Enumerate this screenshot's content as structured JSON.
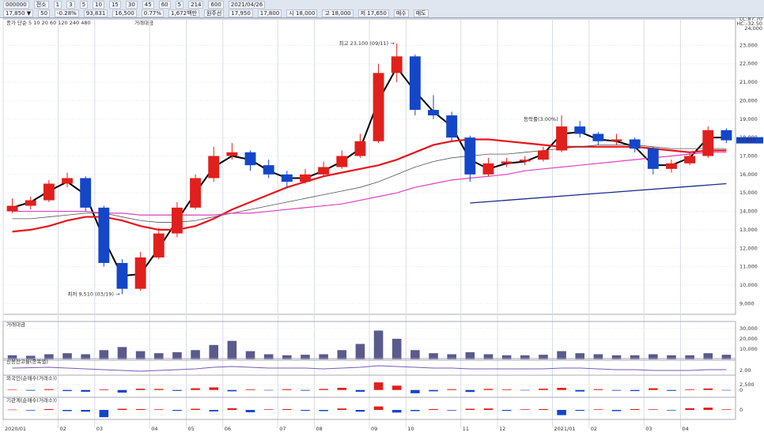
{
  "toolbar": {
    "row1": [
      "000000",
      "전소",
      "1",
      "3",
      "5",
      "10",
      "15",
      "30",
      "45",
      "60",
      "5",
      "214",
      "600",
      "2021/04/26"
    ],
    "row2": [
      "17,850 ▼",
      "50",
      "-0.28%",
      "93,831",
      "16,500",
      "0.77%",
      "1,672백만",
      "원주선",
      "17,950",
      "17,800",
      "시 18,000",
      "고 18,000",
      "저 17,650",
      "매수",
      "매도"
    ]
  },
  "chart_data": {
    "type": "candlestick",
    "legend": [
      "종가 단순 5 10 20 60 120 240 480",
      "거래대금"
    ],
    "right_header": [
      "LC:87.70",
      "HC:-32.50",
      "24,000"
    ],
    "categories": [
      "2020/01",
      null,
      null,
      "02",
      null,
      "03",
      null,
      null,
      "04",
      null,
      "05",
      null,
      "06",
      null,
      null,
      "07",
      null,
      "08",
      null,
      null,
      "09",
      null,
      "10",
      null,
      null,
      "11",
      null,
      "12",
      null,
      null,
      "2021/01",
      null,
      "02",
      null,
      null,
      "03",
      null,
      "04",
      null,
      null
    ],
    "candles": [
      [
        14000,
        14700,
        13900,
        14300
      ],
      [
        14300,
        14800,
        14100,
        14600
      ],
      [
        14600,
        15700,
        14500,
        15500
      ],
      [
        15500,
        16100,
        15300,
        15800
      ],
      [
        15800,
        15900,
        14000,
        14200
      ],
      [
        14200,
        14300,
        11000,
        11200
      ],
      [
        11200,
        11400,
        9510,
        9800
      ],
      [
        9800,
        11800,
        9700,
        11500
      ],
      [
        11500,
        13100,
        11400,
        12800
      ],
      [
        12800,
        14500,
        12600,
        14200
      ],
      [
        14200,
        16000,
        14100,
        15800
      ],
      [
        15800,
        17500,
        15600,
        17000
      ],
      [
        17000,
        17700,
        16800,
        17200
      ],
      [
        17200,
        17300,
        16200,
        16500
      ],
      [
        16500,
        16800,
        15800,
        16000
      ],
      [
        16000,
        16200,
        15300,
        15600
      ],
      [
        15600,
        16300,
        15500,
        16000
      ],
      [
        16000,
        16700,
        15900,
        16400
      ],
      [
        16400,
        17300,
        16300,
        17000
      ],
      [
        17000,
        18200,
        16900,
        17800
      ],
      [
        17800,
        22000,
        17700,
        21500
      ],
      [
        21500,
        23100,
        21000,
        22400
      ],
      [
        22400,
        22500,
        19200,
        19500
      ],
      [
        19500,
        20300,
        19000,
        19200
      ],
      [
        19200,
        19400,
        17800,
        18000
      ],
      [
        18000,
        18100,
        15600,
        16000
      ],
      [
        16000,
        16900,
        15900,
        16600
      ],
      [
        16600,
        16900,
        16400,
        16700
      ],
      [
        16700,
        17000,
        16500,
        16800
      ],
      [
        16800,
        17500,
        16700,
        17300
      ],
      [
        17300,
        19200,
        17200,
        18600
      ],
      [
        18600,
        18900,
        18000,
        18200
      ],
      [
        18200,
        18300,
        17600,
        17800
      ],
      [
        17800,
        18200,
        17600,
        17900
      ],
      [
        17900,
        18000,
        17200,
        17400
      ],
      [
        17400,
        17500,
        16000,
        16300
      ],
      [
        16300,
        16800,
        16100,
        16600
      ],
      [
        16600,
        17200,
        16500,
        17000
      ],
      [
        17000,
        18600,
        16900,
        18400
      ],
      [
        18400,
        18500,
        17700,
        17850
      ]
    ],
    "series": [
      {
        "name": "5",
        "color": "#000000",
        "width": 2,
        "values": [
          14200,
          14500,
          15100,
          15600,
          14900,
          12500,
          10500,
          10600,
          12000,
          13500,
          15000,
          16400,
          17000,
          16800,
          16200,
          15800,
          15800,
          16200,
          16700,
          17400,
          20000,
          21800,
          20500,
          19400,
          18600,
          16800,
          16300,
          16600,
          16700,
          17100,
          18200,
          18300,
          17900,
          17800,
          17500,
          16500,
          16500,
          16900,
          18000,
          18000
        ]
      },
      {
        "name": "60",
        "color": "#e8141c",
        "width": 2.2,
        "values": [
          12900,
          13000,
          13200,
          13500,
          13700,
          13700,
          13500,
          13200,
          13000,
          13000,
          13200,
          13600,
          14100,
          14500,
          14900,
          15300,
          15600,
          15900,
          16100,
          16300,
          16500,
          16800,
          17200,
          17600,
          17800,
          17900,
          17900,
          17800,
          17700,
          17600,
          17500,
          17500,
          17500,
          17500,
          17500,
          17400,
          17300,
          17200,
          17300,
          17300
        ]
      },
      {
        "name": "120",
        "color": "#555555",
        "width": 0.8,
        "values": [
          13600,
          13600,
          13700,
          13800,
          13900,
          13900,
          13700,
          13500,
          13400,
          13400,
          13500,
          13700,
          13900,
          14100,
          14300,
          14500,
          14700,
          14900,
          15100,
          15300,
          15600,
          16000,
          16400,
          16700,
          16900,
          17000,
          17100,
          17100,
          17200,
          17300,
          17400,
          17500,
          17600,
          17600,
          17600,
          17500,
          17400,
          17400,
          17400,
          17400
        ]
      },
      {
        "name": "240",
        "color": "#e040c0",
        "width": 1.2,
        "values": [
          14000,
          14000,
          14000,
          14000,
          14000,
          13900,
          13900,
          13800,
          13800,
          13800,
          13800,
          13800,
          13900,
          13900,
          14000,
          14100,
          14200,
          14300,
          14400,
          14600,
          14800,
          15000,
          15300,
          15500,
          15700,
          15800,
          15900,
          16000,
          16200,
          16300,
          16400,
          16500,
          16600,
          16700,
          16800,
          16900,
          17000,
          17100,
          17200,
          17200
        ]
      }
    ],
    "trendline": {
      "color": "#1a2a8c",
      "points": [
        [
          25,
          14450
        ],
        [
          39,
          15500
        ]
      ]
    },
    "up_color": "#e0201c",
    "down_color": "#1446c8",
    "ylim": [
      8500,
      24000
    ],
    "yticks": [
      {
        "value": 9000,
        "label": "9,000"
      },
      {
        "value": 10000,
        "label": "10,000"
      },
      {
        "value": 11000,
        "label": "11,000"
      },
      {
        "value": 12000,
        "label": "12,000"
      },
      {
        "value": 13000,
        "label": "13,000"
      },
      {
        "value": 14000,
        "label": "14,000"
      },
      {
        "value": 15000,
        "label": "15,000"
      },
      {
        "value": 16000,
        "label": "16,000"
      },
      {
        "value": 17000,
        "label": "17,000"
      },
      {
        "value": 18000,
        "label": "18,000"
      },
      {
        "value": 19000,
        "label": "19,000"
      },
      {
        "value": 20000,
        "label": "20,000"
      },
      {
        "value": 21000,
        "label": "21,000"
      },
      {
        "value": 22000,
        "label": "22,000"
      },
      {
        "value": 23000,
        "label": "23,000"
      }
    ],
    "last_price": {
      "value": 17850,
      "label": "17,850"
    },
    "annotations": [
      {
        "text": "최고 23,100 (09/11) →",
        "index": 21,
        "value": 23100
      },
      {
        "text": "최저 9,510 (03/19) →",
        "index": 6,
        "value": 9510
      },
      {
        "text": "등락률(3.00%)",
        "index": 29,
        "value": 19000
      }
    ],
    "panels": [
      {
        "type": "bar",
        "title": "거래대금",
        "color": "#5a5a8c",
        "ylim": [
          0,
          33000
        ],
        "yticks": [
          {
            "value": 10000,
            "label": "10,000"
          },
          {
            "value": 20000,
            "label": "20,000"
          },
          {
            "value": 30000,
            "label": "30,000"
          }
        ],
        "values": [
          4000,
          3500,
          5000,
          6000,
          5000,
          9000,
          12000,
          8000,
          6000,
          7000,
          9000,
          14000,
          18000,
          8000,
          5000,
          4000,
          4500,
          5000,
          9000,
          15000,
          28000,
          20000,
          9000,
          6000,
          5000,
          7000,
          5000,
          4000,
          4000,
          4500,
          8000,
          6000,
          5000,
          4000,
          4000,
          5000,
          4000,
          4000,
          6000,
          4500
        ]
      },
      {
        "type": "line",
        "title": "신용잔고율(종목별)",
        "color": "#7a5bb5",
        "ylim": [
          1.5,
          3.0
        ],
        "yticks": [
          {
            "value": 2,
            "label": "2.00"
          }
        ],
        "values": [
          2.3,
          2.35,
          2.4,
          2.3,
          2.2,
          2.1,
          2.0,
          1.9,
          2.0,
          2.1,
          2.2,
          2.4,
          2.5,
          2.4,
          2.3,
          2.3,
          2.3,
          2.2,
          2.3,
          2.4,
          2.6,
          2.5,
          2.4,
          2.3,
          2.3,
          2.2,
          2.2,
          2.2,
          2.2,
          2.2,
          2.3,
          2.3,
          2.2,
          2.1,
          2.1,
          2.0,
          2.0,
          2.0,
          2.1,
          2.1
        ]
      },
      {
        "type": "signed_bar",
        "title": "외국인(순매수(거래소))",
        "ylim": [
          -3000,
          5000
        ],
        "yticks": [
          {
            "value": 2500,
            "label": "2,500"
          },
          0
        ],
        "values": [
          200,
          -300,
          400,
          -500,
          -800,
          300,
          -1200,
          600,
          500,
          -400,
          800,
          1200,
          -600,
          300,
          -200,
          400,
          -300,
          500,
          1000,
          -800,
          3500,
          2000,
          -1500,
          -600,
          400,
          -900,
          500,
          300,
          -200,
          600,
          1000,
          -700,
          400,
          -300,
          -500,
          800,
          -400,
          300,
          700,
          -200
        ]
      },
      {
        "type": "signed_bar",
        "title": "기관계(순매수(거래소))",
        "ylim": [
          -3000,
          3000
        ],
        "yticks": [
          0
        ],
        "values": [
          100,
          -200,
          300,
          -400,
          -600,
          -2500,
          400,
          300,
          200,
          -300,
          400,
          -500,
          600,
          -800,
          200,
          300,
          -300,
          -400,
          500,
          -600,
          1200,
          -900,
          -400,
          300,
          -200,
          400,
          500,
          -300,
          200,
          300,
          -1800,
          -300,
          200,
          -400,
          300,
          200,
          -200,
          600,
          800,
          200
        ]
      }
    ]
  }
}
